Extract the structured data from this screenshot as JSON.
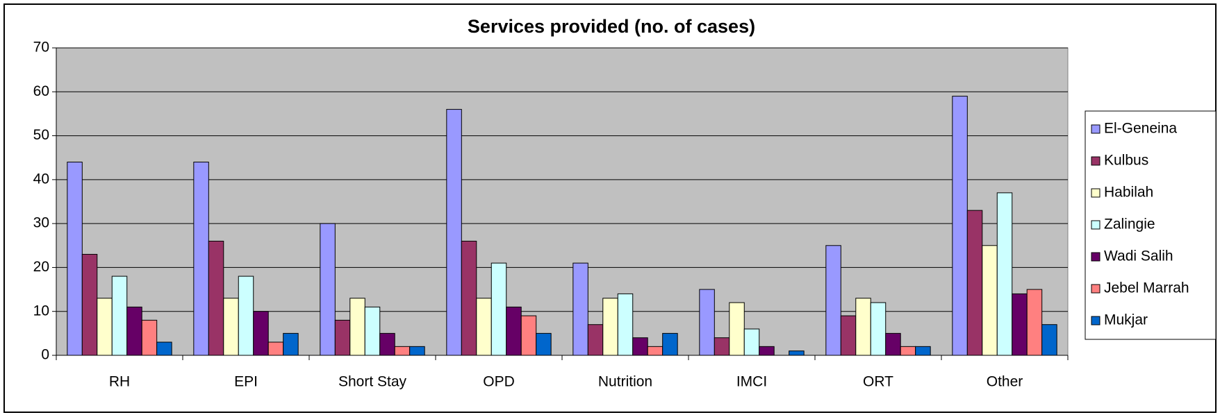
{
  "chart_data": {
    "type": "bar",
    "title": "Services provided (no. of cases)",
    "categories": [
      "RH",
      "EPI",
      "Short Stay",
      "OPD",
      "Nutrition",
      "IMCI",
      "ORT",
      "Other"
    ],
    "series": [
      {
        "name": "El-Geneina",
        "color": "#9999ff",
        "values": [
          44,
          44,
          30,
          56,
          21,
          15,
          25,
          59
        ]
      },
      {
        "name": "Kulbus",
        "color": "#993366",
        "values": [
          23,
          26,
          8,
          26,
          7,
          4,
          9,
          33
        ]
      },
      {
        "name": "Habilah",
        "color": "#ffffcc",
        "values": [
          13,
          13,
          13,
          13,
          13,
          12,
          13,
          25
        ]
      },
      {
        "name": "Zalingie",
        "color": "#ccffff",
        "values": [
          18,
          18,
          11,
          21,
          14,
          6,
          12,
          37
        ]
      },
      {
        "name": "Wadi Salih",
        "color": "#660066",
        "values": [
          11,
          10,
          5,
          11,
          4,
          2,
          5,
          14
        ]
      },
      {
        "name": "Jebel Marrah",
        "color": "#ff8080",
        "values": [
          8,
          3,
          2,
          9,
          2,
          0,
          2,
          15
        ]
      },
      {
        "name": "Mukjar",
        "color": "#0066cc",
        "values": [
          3,
          5,
          2,
          5,
          5,
          1,
          2,
          7
        ]
      }
    ],
    "ylim": [
      0,
      70
    ],
    "yticks": [
      0,
      10,
      20,
      30,
      40,
      50,
      60,
      70
    ],
    "grid": true,
    "legend": "right"
  }
}
